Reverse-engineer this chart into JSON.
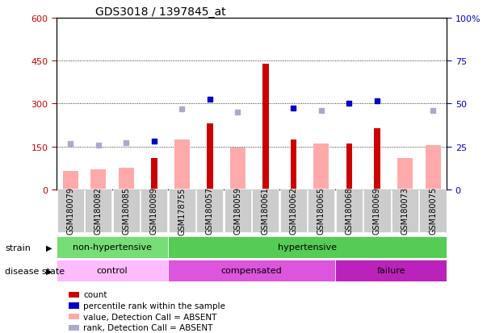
{
  "title": "GDS3018 / 1397845_at",
  "samples": [
    "GSM180079",
    "GSM180082",
    "GSM180085",
    "GSM180089",
    "GSM178755",
    "GSM180057",
    "GSM180059",
    "GSM180061",
    "GSM180062",
    "GSM180065",
    "GSM180068",
    "GSM180069",
    "GSM180073",
    "GSM180075"
  ],
  "count": [
    null,
    null,
    null,
    110,
    null,
    230,
    null,
    440,
    175,
    null,
    160,
    215,
    null,
    null
  ],
  "count_absent": [
    65,
    70,
    75,
    null,
    175,
    null,
    145,
    null,
    null,
    160,
    null,
    null,
    110,
    155
  ],
  "percentile_present": [
    null,
    null,
    null,
    170,
    null,
    315,
    null,
    null,
    285,
    null,
    300,
    310,
    null,
    null
  ],
  "percentile_absent": [
    160,
    155,
    163,
    null,
    280,
    null,
    270,
    null,
    null,
    275,
    null,
    null,
    null,
    275
  ],
  "strain_groups": [
    {
      "label": "non-hypertensive",
      "start": 0,
      "end": 4,
      "color": "#77dd77"
    },
    {
      "label": "hypertensive",
      "start": 4,
      "end": 14,
      "color": "#55cc55"
    }
  ],
  "disease_groups": [
    {
      "label": "control",
      "start": 0,
      "end": 4,
      "color": "#ffbbff"
    },
    {
      "label": "compensated",
      "start": 4,
      "end": 10,
      "color": "#dd55dd"
    },
    {
      "label": "failure",
      "start": 10,
      "end": 14,
      "color": "#bb22bb"
    }
  ],
  "ylim_left": [
    0,
    600
  ],
  "ylim_right": [
    0,
    100
  ],
  "yticks_left": [
    0,
    150,
    300,
    450,
    600
  ],
  "yticks_right": [
    0,
    25,
    50,
    75,
    100
  ],
  "left_tick_color": "#cc0000",
  "right_tick_color": "#0000cc",
  "bar_color_present": "#cc0000",
  "bar_color_absent": "#ffaaaa",
  "dot_color_present": "#0000cc",
  "dot_color_absent": "#aaaacc",
  "xtick_bg_color": "#cccccc",
  "background_color": "#ffffff"
}
